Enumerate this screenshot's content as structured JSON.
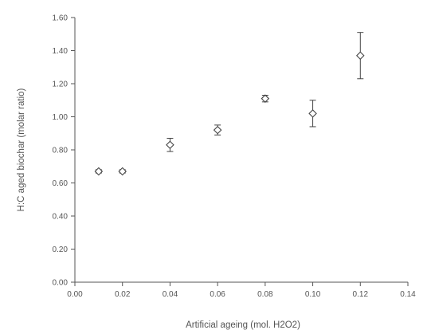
{
  "chart_data": {
    "type": "scatter",
    "title": "",
    "xlabel": "Artificial ageing (mol. H2O2)",
    "ylabel": "H:C aged biochar (molar ratio)",
    "xlim": [
      0,
      0.14
    ],
    "ylim": [
      0,
      1.6
    ],
    "xticks": [
      0.0,
      0.02,
      0.04,
      0.06,
      0.08,
      0.1,
      0.12,
      0.14
    ],
    "yticks": [
      0.0,
      0.2,
      0.4,
      0.6,
      0.8,
      1.0,
      1.2,
      1.4,
      1.6
    ],
    "xtick_labels": [
      "0.00",
      "0.02",
      "0.04",
      "0.06",
      "0.08",
      "0.10",
      "0.12",
      "0.14"
    ],
    "ytick_labels": [
      "0.00",
      "0.20",
      "0.40",
      "0.60",
      "0.80",
      "1.00",
      "1.20",
      "1.40",
      "1.60"
    ],
    "grid": false,
    "marker": "open-diamond",
    "series": [
      {
        "x": [
          0.01,
          0.02,
          0.04,
          0.06,
          0.08,
          0.1,
          0.12
        ],
        "y": [
          0.67,
          0.67,
          0.83,
          0.92,
          1.11,
          1.02,
          1.37
        ],
        "error": [
          0.01,
          0.01,
          0.04,
          0.03,
          0.02,
          0.08,
          0.14
        ]
      }
    ]
  },
  "colors": {
    "marker": "#444444",
    "axis": "#555555",
    "text": "#555555"
  }
}
